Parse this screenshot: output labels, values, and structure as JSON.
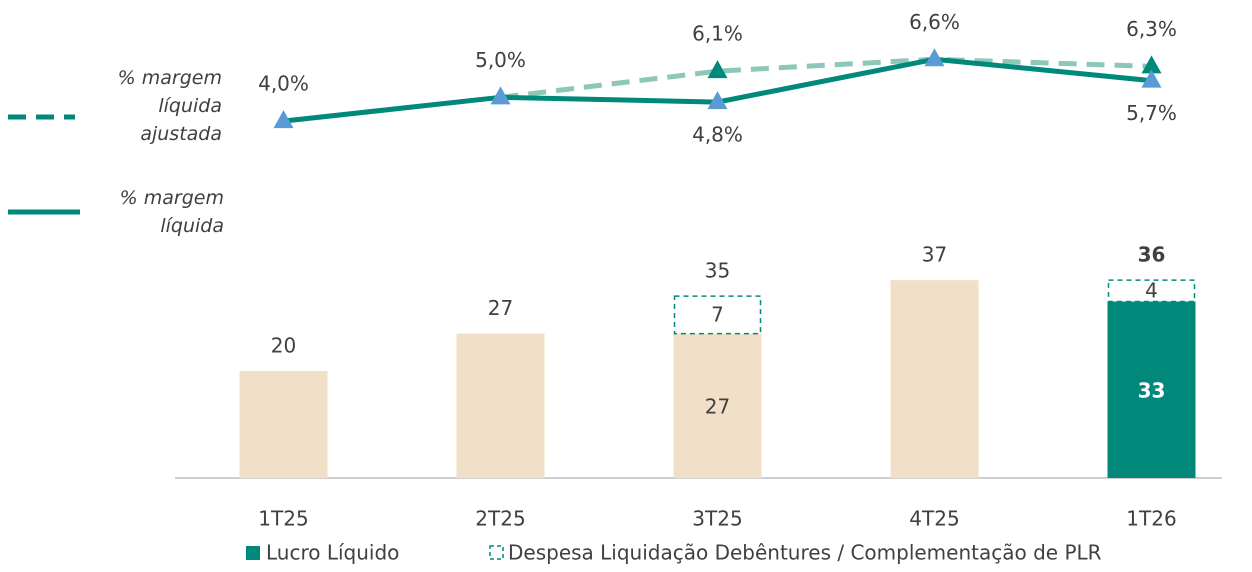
{
  "chart_data": {
    "type": "bar-line",
    "categories": [
      "1T25",
      "2T25",
      "3T25",
      "4T25",
      "1T26"
    ],
    "bar_series": [
      {
        "name": "Lucro Líquido",
        "color": "#00897b",
        "colors": [
          "#f2dfc7",
          "#f2dfc7",
          "#f2dfc7",
          "#f2dfc7",
          "#00897b"
        ],
        "values": [
          20,
          27,
          27,
          37,
          33
        ]
      },
      {
        "name": "Despesa Liquidação Debêntures / Complementação de PLR",
        "color": "#00897b",
        "style": "dashed-outline",
        "values": [
          null,
          null,
          7,
          null,
          4
        ]
      }
    ],
    "totals": [
      20,
      27,
      35,
      37,
      36
    ],
    "highlight_category": "1T26",
    "ylim": [
      0,
      46
    ],
    "line_series": [
      {
        "name": "% margem líquida ajustada",
        "color": "#8cc7b8",
        "marker_color": "#00897b",
        "dash": true,
        "axis": "y2",
        "values": [
          null,
          5.0,
          6.1,
          6.6,
          6.3
        ],
        "value_labels": [
          null,
          null,
          "6,1%",
          null,
          "6,3%"
        ]
      },
      {
        "name": "% margem líquida",
        "color": "#00897b",
        "marker_color": "#5b9bd5",
        "dash": false,
        "axis": "y2",
        "values": [
          4.0,
          5.0,
          4.8,
          6.6,
          5.7
        ],
        "value_labels": [
          "4,0%",
          "5,0%",
          "4,8%",
          "6,6%",
          "5,7%"
        ]
      }
    ],
    "y2lim": [
      -11,
      8.25
    ]
  }
}
